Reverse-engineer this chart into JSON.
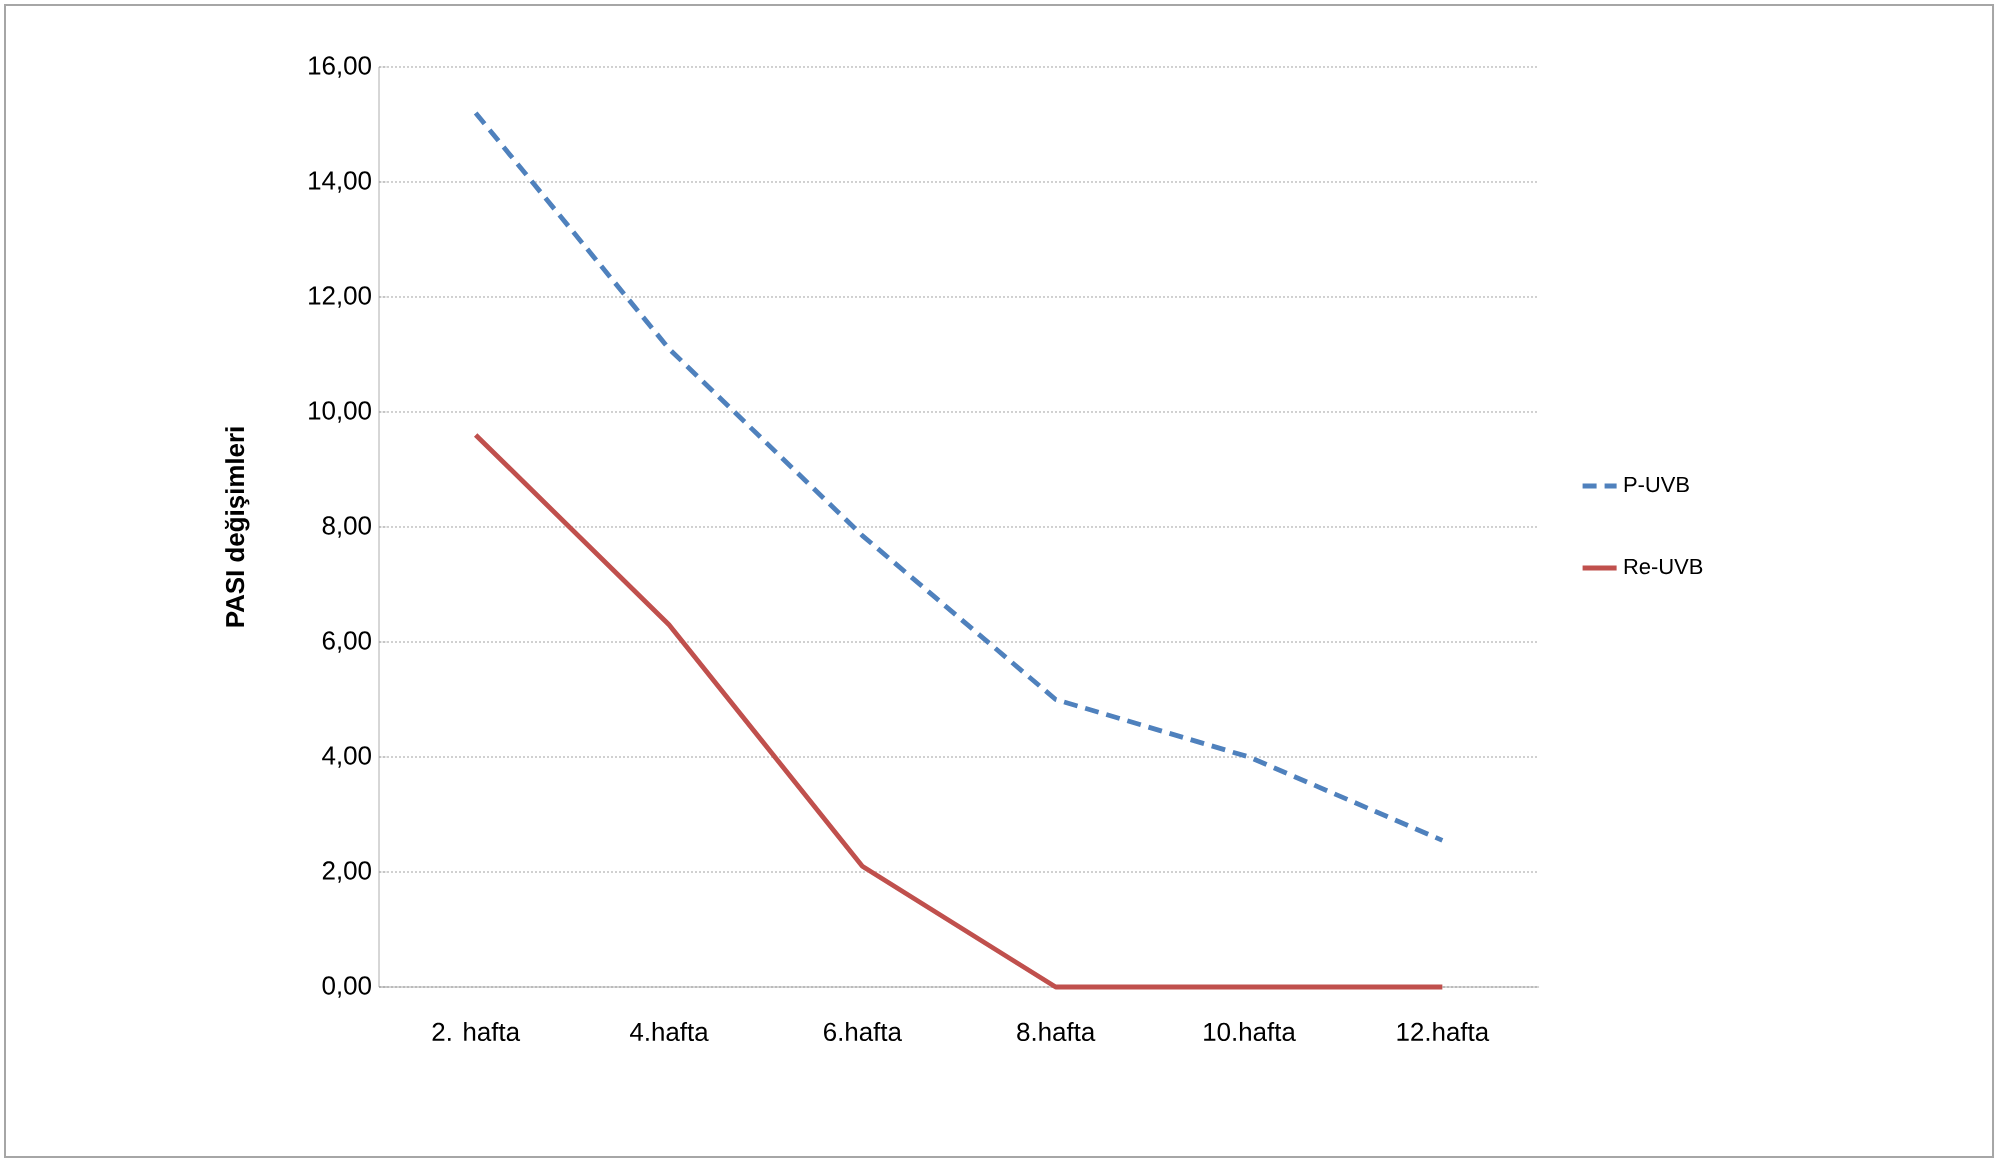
{
  "chart_data": {
    "type": "line",
    "ylabel": "PASI  değişimleri",
    "categories": [
      "2. hafta",
      "4.hafta",
      "6.hafta",
      "8.hafta",
      "10.hafta",
      "12.hafta"
    ],
    "series": [
      {
        "name": "P-UVB",
        "color": "#4f81bd",
        "line_style": "dashed",
        "values": [
          15.2,
          11.1,
          7.85,
          5.0,
          4.0,
          2.55
        ]
      },
      {
        "name": "Re-UVB",
        "color": "#c0504d",
        "line_style": "solid",
        "values": [
          9.6,
          6.3,
          2.1,
          0.0,
          0.0,
          0.0
        ]
      }
    ],
    "ylim": [
      0,
      16
    ],
    "yticks": [
      {
        "value": 0,
        "label": "0,00"
      },
      {
        "value": 2,
        "label": "2,00"
      },
      {
        "value": 4,
        "label": "4,00"
      },
      {
        "value": 6,
        "label": "6,00"
      },
      {
        "value": 8,
        "label": "8,00"
      },
      {
        "value": 10,
        "label": "10,00"
      },
      {
        "value": 12,
        "label": "12,00"
      },
      {
        "value": 14,
        "label": "14,00"
      },
      {
        "value": 16,
        "label": "16,00"
      }
    ],
    "grid": "y",
    "legend": "right",
    "marker": "none"
  }
}
